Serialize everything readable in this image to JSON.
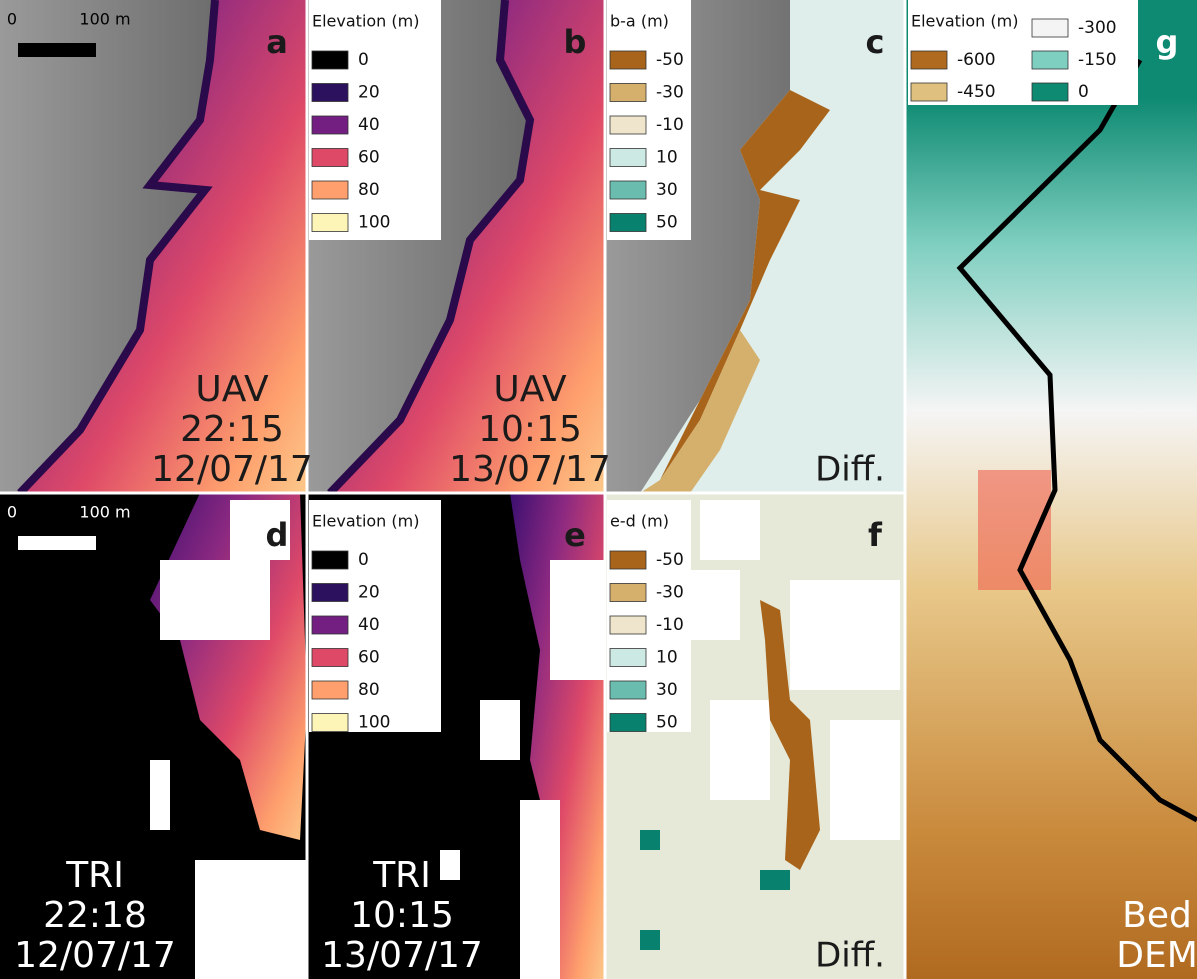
{
  "panels": [
    {
      "letter": "a",
      "caption": [
        "UAV",
        "22:15",
        "12/07/17"
      ],
      "text_color": "#1a1a1a"
    },
    {
      "letter": "b",
      "caption": [
        "UAV",
        "10:15",
        "13/07/17"
      ],
      "text_color": "#1a1a1a"
    },
    {
      "letter": "c",
      "caption": [
        "Diff."
      ],
      "text_color": "#1a1a1a"
    },
    {
      "letter": "d",
      "caption": [
        "TRI",
        "22:18",
        "12/07/17"
      ],
      "text_color": "#ffffff"
    },
    {
      "letter": "e",
      "caption": [
        "TRI",
        "10:15",
        "13/07/17"
      ],
      "text_color": "#ffffff"
    },
    {
      "letter": "f",
      "caption": [
        "Diff."
      ],
      "text_color": "#1a1a1a"
    },
    {
      "letter": "g",
      "caption": [
        "Bed",
        "DEM"
      ],
      "text_color": "#ffffff"
    }
  ],
  "scale_bars": [
    {
      "start": "0",
      "end": "100 m",
      "color": "#000000"
    },
    {
      "start": "0",
      "end": "100 m",
      "color": "#ffffff"
    }
  ],
  "legends": [
    {
      "title": "Elevation (m)",
      "items": [
        {
          "label": "0",
          "color": "#000000"
        },
        {
          "label": "20",
          "color": "#2c115f"
        },
        {
          "label": "40",
          "color": "#721f81"
        },
        {
          "label": "60",
          "color": "#de4968"
        },
        {
          "label": "80",
          "color": "#fe9f6d"
        },
        {
          "label": "100",
          "color": "#fdf5b8"
        }
      ]
    },
    {
      "title": "b-a (m)",
      "items": [
        {
          "label": "-50",
          "color": "#a8641a"
        },
        {
          "label": "-30",
          "color": "#d4b06c"
        },
        {
          "label": "-10",
          "color": "#efe5cc"
        },
        {
          "label": "10",
          "color": "#cde9e4"
        },
        {
          "label": "30",
          "color": "#69bcae"
        },
        {
          "label": "50",
          "color": "#08826e"
        }
      ]
    },
    {
      "title": "Elevation (m)",
      "items": [
        {
          "label": "0",
          "color": "#000000"
        },
        {
          "label": "20",
          "color": "#2c115f"
        },
        {
          "label": "40",
          "color": "#721f81"
        },
        {
          "label": "60",
          "color": "#de4968"
        },
        {
          "label": "80",
          "color": "#fe9f6d"
        },
        {
          "label": "100",
          "color": "#fdf5b8"
        }
      ]
    },
    {
      "title": "e-d (m)",
      "items": [
        {
          "label": "-50",
          "color": "#a8641a"
        },
        {
          "label": "-30",
          "color": "#d4b06c"
        },
        {
          "label": "-10",
          "color": "#efe5cc"
        },
        {
          "label": "10",
          "color": "#cde9e4"
        },
        {
          "label": "30",
          "color": "#69bcae"
        },
        {
          "label": "50",
          "color": "#08826e"
        }
      ]
    },
    {
      "title": "Elevation (m)",
      "items": [
        {
          "label": "-600",
          "color": "#b06a20"
        },
        {
          "label": "-450",
          "color": "#e0c07e"
        },
        {
          "label": "-300",
          "color": "#f4f4f4"
        },
        {
          "label": "-150",
          "color": "#7fcfc0"
        },
        {
          "label": "0",
          "color": "#0e8a72"
        }
      ]
    }
  ]
}
